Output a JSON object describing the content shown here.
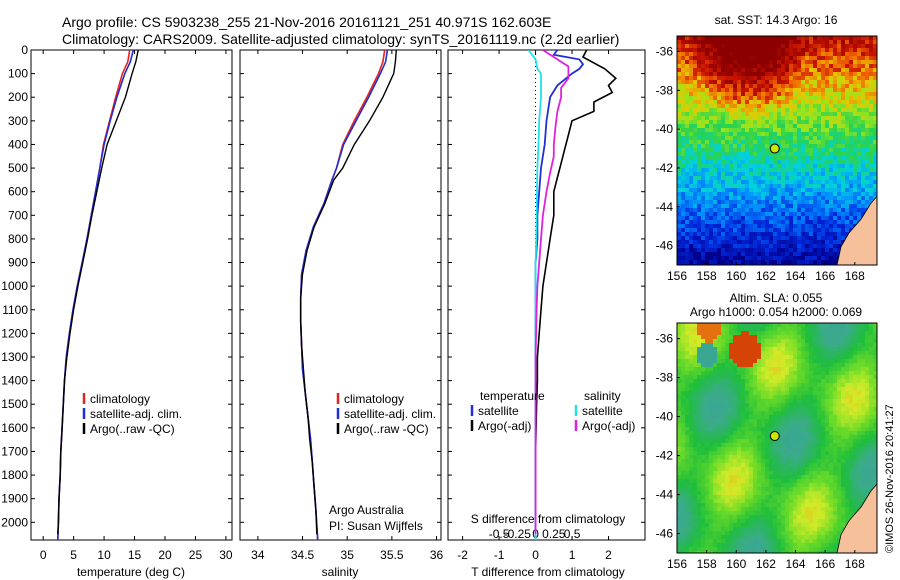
{
  "header": {
    "line1": "Argo profile: CS 5903238_255 21-Nov-2016 20161121_251 40.971S 162.603E",
    "line2": "Climatology: CARS2009. Satellite-adjusted climatology: synTS_20161119.nc (2.2d earlier)"
  },
  "colors": {
    "climatology": "#e8201c",
    "satellite": "#1f2fd6",
    "argo": "#000000",
    "sat_salinity": "#1fe3ea",
    "argo_salinity": "#e020e0",
    "land": "#f5c09a"
  },
  "chart_data": [
    {
      "type": "line",
      "id": "temperature",
      "xlabel": "temperature (deg C)",
      "ylabel": "",
      "xlim": [
        -2,
        31
      ],
      "ylim": [
        2075,
        0
      ],
      "xticks": [
        "0",
        "5",
        "10",
        "15",
        "20",
        "25",
        "30"
      ],
      "yticks": [
        "0",
        "100",
        "200",
        "300",
        "400",
        "500",
        "600",
        "700",
        "800",
        "900",
        "1000",
        "1100",
        "1200",
        "1300",
        "1400",
        "1500",
        "1600",
        "1700",
        "1800",
        "1900",
        "2000"
      ],
      "legend": [
        "climatology",
        "satellite-adj. clim.",
        "Argo(..raw -QC)"
      ],
      "series": [
        {
          "name": "climatology",
          "color": "#e8201c",
          "points": [
            [
              14.2,
              0
            ],
            [
              13.9,
              50
            ],
            [
              13.0,
              100
            ],
            [
              11.9,
              200
            ],
            [
              10.9,
              300
            ],
            [
              9.9,
              400
            ],
            [
              9.3,
              500
            ],
            [
              8.6,
              600
            ],
            [
              7.9,
              700
            ],
            [
              7.2,
              800
            ],
            [
              6.4,
              900
            ],
            [
              5.6,
              1000
            ],
            [
              4.9,
              1100
            ],
            [
              4.3,
              1200
            ],
            [
              3.8,
              1300
            ],
            [
              3.5,
              1400
            ],
            [
              3.3,
              1500
            ],
            [
              3.1,
              1600
            ],
            [
              2.9,
              1700
            ],
            [
              2.8,
              1800
            ],
            [
              2.6,
              1900
            ],
            [
              2.5,
              2000
            ],
            [
              2.4,
              2075
            ]
          ]
        },
        {
          "name": "satellite-adj. clim.",
          "color": "#1f2fd6",
          "points": [
            [
              14.8,
              0
            ],
            [
              14.3,
              50
            ],
            [
              13.4,
              100
            ],
            [
              12.1,
              200
            ],
            [
              11.0,
              300
            ],
            [
              10.0,
              400
            ],
            [
              9.3,
              500
            ],
            [
              8.6,
              600
            ],
            [
              7.9,
              700
            ],
            [
              7.2,
              800
            ],
            [
              6.4,
              900
            ],
            [
              5.6,
              1000
            ],
            [
              4.9,
              1100
            ],
            [
              4.3,
              1200
            ],
            [
              3.8,
              1300
            ],
            [
              3.5,
              1400
            ],
            [
              3.3,
              1500
            ],
            [
              3.1,
              1600
            ],
            [
              2.9,
              1700
            ],
            [
              2.8,
              1800
            ],
            [
              2.6,
              1900
            ],
            [
              2.5,
              2000
            ],
            [
              2.4,
              2075
            ]
          ]
        },
        {
          "name": "Argo(..raw -QC)",
          "color": "#000000",
          "points": [
            [
              15.6,
              0
            ],
            [
              15.2,
              50
            ],
            [
              14.6,
              100
            ],
            [
              13.5,
              200
            ],
            [
              12.0,
              300
            ],
            [
              10.5,
              400
            ],
            [
              9.6,
              500
            ],
            [
              8.8,
              600
            ],
            [
              8.0,
              700
            ],
            [
              7.3,
              800
            ],
            [
              6.5,
              900
            ],
            [
              5.7,
              1000
            ],
            [
              5.0,
              1100
            ],
            [
              4.4,
              1200
            ],
            [
              3.9,
              1300
            ],
            [
              3.5,
              1400
            ],
            [
              3.3,
              1500
            ],
            [
              3.1,
              1600
            ],
            [
              2.9,
              1700
            ],
            [
              2.8,
              1800
            ],
            [
              2.6,
              1900
            ],
            [
              2.5,
              2000
            ],
            [
              2.4,
              2050
            ]
          ]
        }
      ]
    },
    {
      "type": "line",
      "id": "salinity",
      "xlabel": "salinity",
      "ylabel": "",
      "xlim": [
        33.8,
        36.05
      ],
      "ylim": [
        2075,
        0
      ],
      "xticks": [
        "34",
        "34.5",
        "35",
        "35.5",
        "36"
      ],
      "legend": [
        "climatology",
        "satellite-adj. clim.",
        "Argo(..raw -QC)"
      ],
      "annotation": [
        "Argo Australia",
        "PI: Susan Wijffels"
      ],
      "series": [
        {
          "name": "climatology",
          "color": "#e8201c",
          "points": [
            [
              35.42,
              0
            ],
            [
              35.4,
              50
            ],
            [
              35.35,
              100
            ],
            [
              35.22,
              200
            ],
            [
              35.08,
              300
            ],
            [
              34.95,
              400
            ],
            [
              34.88,
              500
            ],
            [
              34.83,
              550
            ],
            [
              34.74,
              650
            ],
            [
              34.62,
              750
            ],
            [
              34.54,
              850
            ],
            [
              34.49,
              950
            ],
            [
              34.48,
              1050
            ],
            [
              34.48,
              1150
            ],
            [
              34.49,
              1250
            ],
            [
              34.5,
              1350
            ],
            [
              34.53,
              1450
            ],
            [
              34.56,
              1550
            ],
            [
              34.59,
              1650
            ],
            [
              34.61,
              1750
            ],
            [
              34.63,
              1850
            ],
            [
              34.65,
              1950
            ],
            [
              34.67,
              2075
            ]
          ]
        },
        {
          "name": "satellite-adj. clim.",
          "color": "#1f2fd6",
          "points": [
            [
              35.45,
              0
            ],
            [
              35.43,
              50
            ],
            [
              35.37,
              100
            ],
            [
              35.24,
              200
            ],
            [
              35.1,
              300
            ],
            [
              34.96,
              400
            ],
            [
              34.88,
              500
            ],
            [
              34.83,
              550
            ],
            [
              34.74,
              650
            ],
            [
              34.62,
              750
            ],
            [
              34.54,
              850
            ],
            [
              34.49,
              950
            ],
            [
              34.48,
              1050
            ],
            [
              34.48,
              1150
            ],
            [
              34.49,
              1250
            ],
            [
              34.5,
              1350
            ],
            [
              34.53,
              1450
            ],
            [
              34.56,
              1550
            ],
            [
              34.59,
              1650
            ],
            [
              34.61,
              1750
            ],
            [
              34.63,
              1850
            ],
            [
              34.65,
              1950
            ],
            [
              34.67,
              2075
            ]
          ]
        },
        {
          "name": "Argo(..raw -QC)",
          "color": "#000000",
          "points": [
            [
              35.55,
              0
            ],
            [
              35.54,
              50
            ],
            [
              35.52,
              100
            ],
            [
              35.4,
              200
            ],
            [
              35.25,
              300
            ],
            [
              35.08,
              400
            ],
            [
              34.95,
              500
            ],
            [
              34.85,
              550
            ],
            [
              34.75,
              650
            ],
            [
              34.63,
              750
            ],
            [
              34.55,
              850
            ],
            [
              34.5,
              950
            ],
            [
              34.48,
              1050
            ],
            [
              34.48,
              1150
            ],
            [
              34.49,
              1250
            ],
            [
              34.51,
              1350
            ],
            [
              34.53,
              1450
            ],
            [
              34.56,
              1550
            ],
            [
              34.58,
              1650
            ],
            [
              34.61,
              1750
            ],
            [
              34.63,
              1850
            ],
            [
              34.65,
              1950
            ],
            [
              34.66,
              2050
            ]
          ]
        }
      ]
    },
    {
      "type": "line",
      "id": "difference",
      "xlabel": "T difference from climatology",
      "top_xlabel": "S difference from climatology",
      "xlim": [
        -2.4,
        3.0
      ],
      "ylim": [
        2075,
        0
      ],
      "xticks_T": [
        "-2",
        "-1",
        "0",
        "1",
        "2"
      ],
      "xticks_S": [
        "-0.5",
        "-0.25",
        "0",
        "0.25",
        "0.5"
      ],
      "legend_temperature_title": "temperature",
      "legend_salinity_title": "salinity",
      "legend_temperature": [
        "satellite",
        "Argo(-adj)"
      ],
      "legend_salinity": [
        "satellite",
        "Argo(-adj)"
      ],
      "series": [
        {
          "name": "satellite",
          "group": "temperature",
          "color": "#1f2fd6",
          "points": [
            [
              0.6,
              0
            ],
            [
              0.5,
              20
            ],
            [
              1.2,
              40
            ],
            [
              1.3,
              60
            ],
            [
              1.2,
              80
            ],
            [
              1.0,
              100
            ],
            [
              0.6,
              150
            ],
            [
              0.4,
              200
            ],
            [
              0.3,
              300
            ],
            [
              0.25,
              400
            ],
            [
              0.15,
              500
            ],
            [
              0.1,
              600
            ],
            [
              0.05,
              700
            ],
            [
              0.05,
              800
            ],
            [
              0,
              900
            ],
            [
              0,
              1000
            ],
            [
              0,
              1200
            ],
            [
              0,
              1500
            ],
            [
              0,
              2000
            ],
            [
              0,
              2075
            ]
          ]
        },
        {
          "name": "Argo(-adj)",
          "group": "temperature",
          "color": "#000000",
          "points": [
            [
              1.4,
              0
            ],
            [
              1.3,
              30
            ],
            [
              1.9,
              80
            ],
            [
              2.2,
              120
            ],
            [
              2.0,
              150
            ],
            [
              2.1,
              180
            ],
            [
              1.6,
              220
            ],
            [
              1.6,
              260
            ],
            [
              1.0,
              300
            ],
            [
              0.9,
              360
            ],
            [
              0.8,
              420
            ],
            [
              0.7,
              480
            ],
            [
              0.6,
              540
            ],
            [
              0.5,
              600
            ],
            [
              0.5,
              700
            ],
            [
              0.4,
              800
            ],
            [
              0.3,
              900
            ],
            [
              0.2,
              1000
            ],
            [
              0.15,
              1100
            ],
            [
              0.1,
              1200
            ],
            [
              0.05,
              1300
            ],
            [
              0.05,
              1400
            ],
            [
              0.03,
              1500
            ],
            [
              0,
              1700
            ],
            [
              0,
              2050
            ]
          ]
        },
        {
          "name": "satellite",
          "group": "salinity",
          "color": "#1fe3ea",
          "points": [
            [
              -0.2,
              0
            ],
            [
              0,
              40
            ],
            [
              0.05,
              80
            ],
            [
              0.15,
              100
            ],
            [
              0.15,
              200
            ],
            [
              0.1,
              300
            ],
            [
              0.08,
              400
            ],
            [
              0.05,
              500
            ],
            [
              0.03,
              700
            ],
            [
              0.02,
              800
            ],
            [
              0,
              900
            ],
            [
              0,
              1100
            ],
            [
              0,
              1500
            ],
            [
              0,
              2000
            ],
            [
              0,
              2075
            ]
          ]
        },
        {
          "name": "Argo(-adj)",
          "group": "salinity",
          "color": "#e020e0",
          "points": [
            [
              0.2,
              0
            ],
            [
              0.9,
              70
            ],
            [
              0.9,
              120
            ],
            [
              0.7,
              160
            ],
            [
              0.7,
              200
            ],
            [
              0.6,
              260
            ],
            [
              0.55,
              320
            ],
            [
              0.5,
              400
            ],
            [
              0.5,
              450
            ],
            [
              0.4,
              520
            ],
            [
              0.3,
              600
            ],
            [
              0.2,
              700
            ],
            [
              0.15,
              800
            ],
            [
              0.1,
              900
            ],
            [
              0.05,
              1000
            ],
            [
              0.03,
              1100
            ],
            [
              0,
              1300
            ],
            [
              0,
              1500
            ],
            [
              0,
              2000
            ],
            [
              0,
              2050
            ]
          ]
        }
      ]
    },
    {
      "type": "heatmap",
      "id": "sst_map",
      "title": "sat. SST: 14.3  Argo: 16",
      "xlim": [
        156,
        169.5
      ],
      "ylim": [
        -47,
        -35.2
      ],
      "xticks": [
        "156",
        "158",
        "160",
        "162",
        "164",
        "166",
        "168"
      ],
      "yticks": [
        "-36",
        "-38",
        "-40",
        "-42",
        "-44",
        "-46"
      ],
      "marker": [
        162.6,
        -41.0
      ]
    },
    {
      "type": "heatmap",
      "id": "sla_map",
      "title_line1": "Altim. SLA: 0.055",
      "title_line2": "Argo h1000: 0.054  h2000: 0.069",
      "xlim": [
        156,
        169.5
      ],
      "ylim": [
        -47,
        -35.2
      ],
      "xticks": [
        "156",
        "158",
        "160",
        "162",
        "164",
        "166",
        "168"
      ],
      "yticks": [
        "-36",
        "-38",
        "-40",
        "-42",
        "-44",
        "-46"
      ],
      "marker": [
        162.6,
        -41.0
      ]
    }
  ],
  "side_stamp": "©IMOS 26-Nov-2016 20:41:27"
}
